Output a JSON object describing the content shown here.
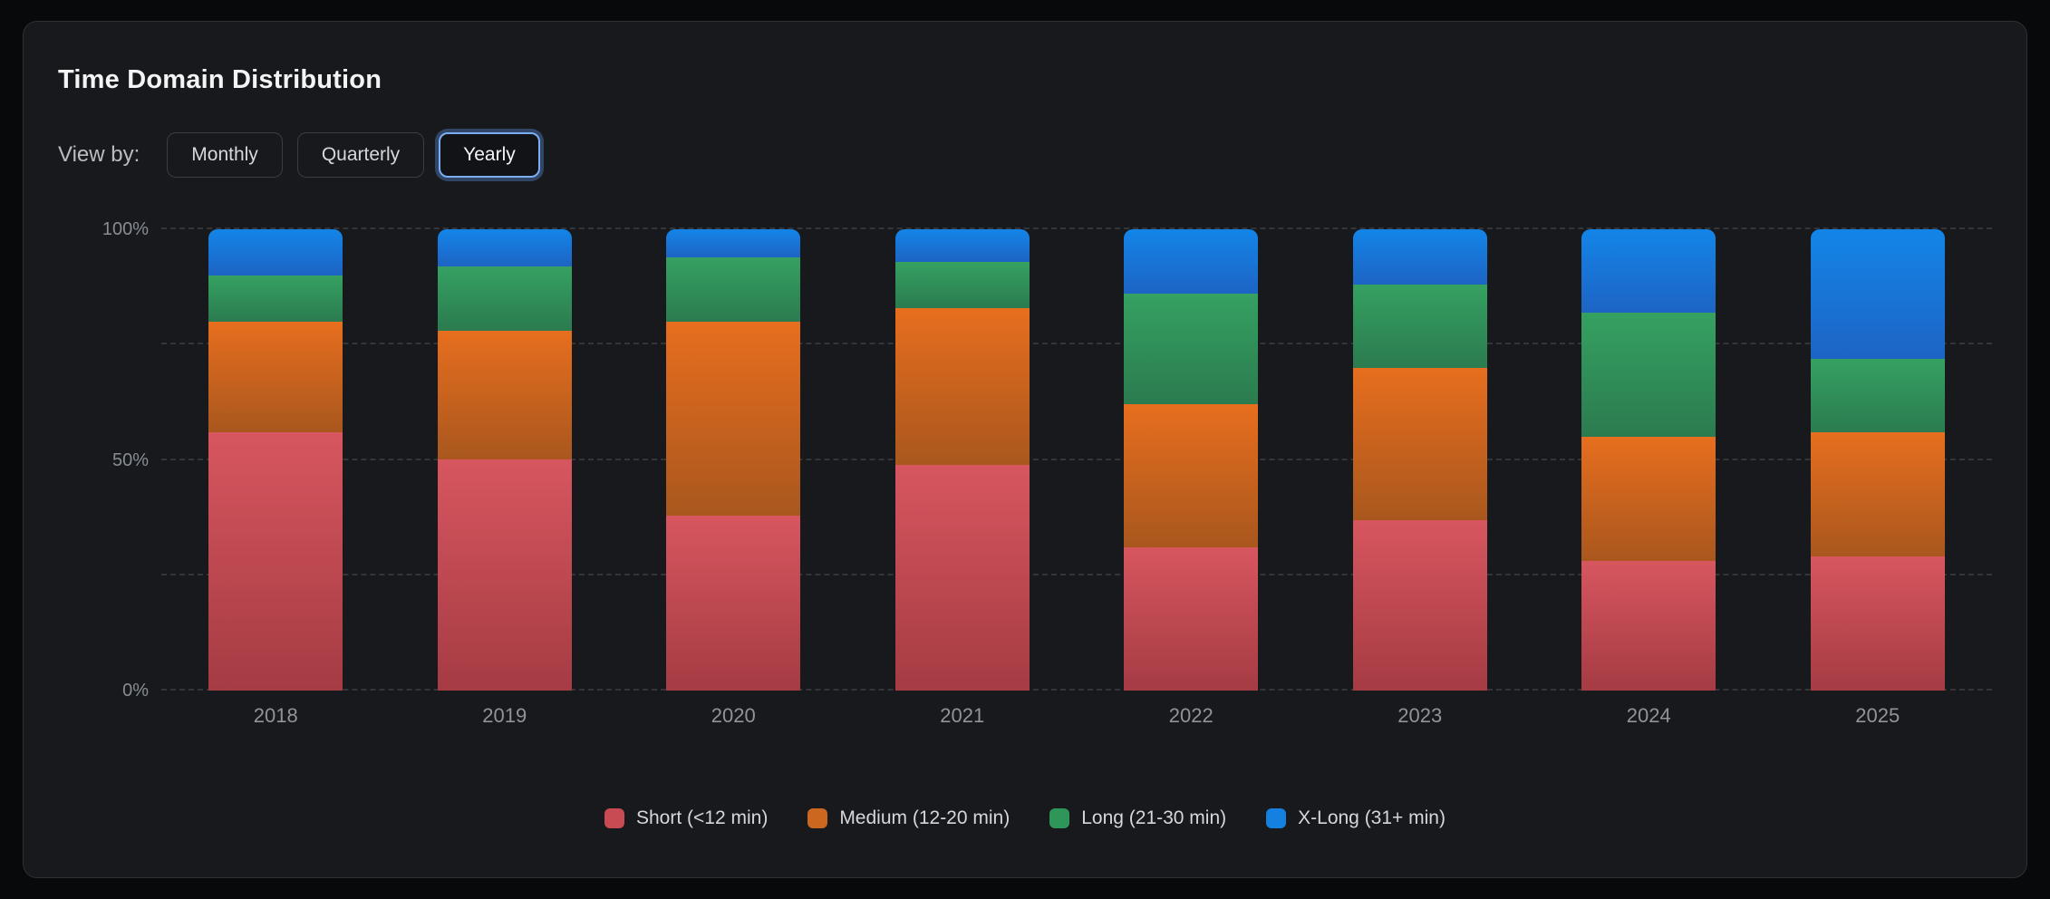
{
  "panel": {
    "title": "Time Domain Distribution"
  },
  "controls": {
    "label": "View by:",
    "options": [
      {
        "label": "Monthly",
        "active": false
      },
      {
        "label": "Quarterly",
        "active": false
      },
      {
        "label": "Yearly",
        "active": true
      }
    ]
  },
  "theme": {
    "page_background": "#08090a",
    "panel_background": "#18191c",
    "panel_border": "#2d3034",
    "active_button_border": "#7cacf2",
    "gridline_color": "rgba(148,155,165,0.22)",
    "axis_label_color": "#878d94"
  },
  "chart_data": {
    "type": "bar",
    "stacked": true,
    "value_unit": "percent",
    "title": "Time Domain Distribution",
    "categories": [
      "2018",
      "2019",
      "2020",
      "2021",
      "2022",
      "2023",
      "2024",
      "2025"
    ],
    "series": [
      {
        "name": "Short (<12 min)",
        "key": "short",
        "values": [
          56,
          50,
          38,
          49,
          31,
          37,
          28,
          29
        ],
        "gradient_top": "#d7565f",
        "gradient_bottom": "#a53b43",
        "legend_color": "#c84a53"
      },
      {
        "name": "Medium (12-20 min)",
        "key": "medium",
        "values": [
          24,
          28,
          42,
          34,
          31,
          33,
          27,
          27
        ],
        "gradient_top": "#e76e1e",
        "gradient_bottom": "#a9571e",
        "legend_color": "#cb671e"
      },
      {
        "name": "Long (21-30 min)",
        "key": "long",
        "values": [
          10,
          14,
          14,
          10,
          24,
          18,
          27,
          16
        ],
        "gradient_top": "#35a161",
        "gradient_bottom": "#2b7b4f",
        "legend_color": "#2f9659"
      },
      {
        "name": "X-Long (31+ min)",
        "key": "xlong",
        "values": [
          10,
          8,
          6,
          7,
          14,
          12,
          18,
          28
        ],
        "gradient_top": "#1385e8",
        "gradient_bottom": "#1d64c4",
        "legend_color": "#1480e0"
      }
    ],
    "y_axis": {
      "range": [
        0,
        100
      ],
      "labeled_ticks": [
        {
          "pct": 0,
          "label": "0%"
        },
        {
          "pct": 50,
          "label": "50%"
        },
        {
          "pct": 100,
          "label": "100%"
        }
      ],
      "gridline_pcts": [
        0,
        25,
        50,
        75,
        100
      ],
      "gridline_style": "dashed"
    },
    "legend_position": "bottom"
  }
}
